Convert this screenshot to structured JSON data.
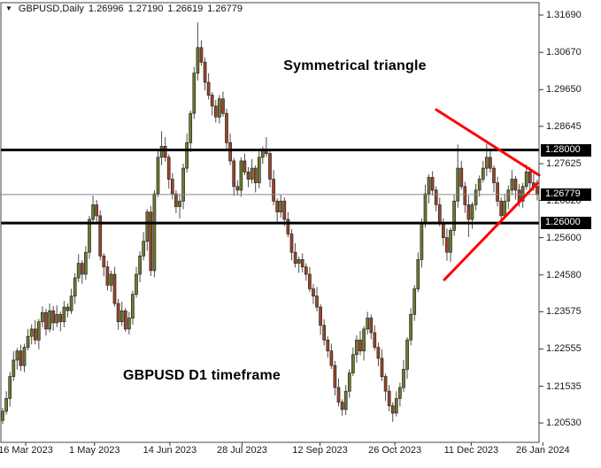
{
  "info_bar": {
    "dropdown_icon": "▼",
    "symbol_label": "GBPUSD,Daily",
    "open": "1.26996",
    "high": "1.27190",
    "low": "1.26619",
    "close": "1.26779"
  },
  "annotations": {
    "pattern_label": "Symmetrical triangle",
    "timeframe_label": "GBPUSD D1 timeframe"
  },
  "chart_data": {
    "type": "candlestick",
    "symbol": "GBPUSD",
    "timeframe": "D1",
    "current_bar": {
      "open": 1.26996,
      "high": 1.2719,
      "low": 1.26619,
      "close": 1.26779
    },
    "price_axis": {
      "top": 1.3203,
      "bottom": 1.2,
      "ticks": [
        1.3169,
        1.3067,
        1.2965,
        1.28645,
        1.27625,
        1.2662,
        1.256,
        1.2458,
        1.23575,
        1.22555,
        1.21535,
        1.2053
      ],
      "badges": [
        {
          "label": "1.28000",
          "price": 1.28
        },
        {
          "label": "1.26779",
          "price": 1.26779
        },
        {
          "label": "1.26000",
          "price": 1.26
        }
      ]
    },
    "date_axis": {
      "ticks": [
        {
          "label": "16 Mar 2023",
          "pos": 0.046
        },
        {
          "label": "1 May 2023",
          "pos": 0.174
        },
        {
          "label": "14 Jun 2023",
          "pos": 0.314
        },
        {
          "label": "28 Jul 2023",
          "pos": 0.448
        },
        {
          "label": "12 Sep 2023",
          "pos": 0.593
        },
        {
          "label": "26 Oct 2023",
          "pos": 0.732
        },
        {
          "label": "11 Dec 2023",
          "pos": 0.874
        },
        {
          "label": "26 Jan 2024",
          "pos": 1.007
        }
      ]
    },
    "levels": [
      {
        "price": 1.28,
        "color": "#000000",
        "width": 3
      },
      {
        "price": 1.26,
        "color": "#000000",
        "width": 3
      },
      {
        "price": 1.26779,
        "color": "#888888",
        "width": 1
      }
    ],
    "trendlines": [
      {
        "x1": 0.809,
        "p1": 1.291,
        "x2": 1.0,
        "p2": 1.2731,
        "color": "#ff0000",
        "width": 3
      },
      {
        "x1": 0.824,
        "p1": 1.2445,
        "x2": 0.997,
        "p2": 1.2709,
        "color": "#ff0000",
        "width": 3
      }
    ],
    "colors": {
      "bull": "#6e7b2b",
      "bear": "#9e4527",
      "wick": "#4d4d4d",
      "outline": "#262626",
      "border": "#444444"
    },
    "candles": [
      [
        1.206,
        1.2095,
        1.205,
        1.2085
      ],
      [
        1.2085,
        1.214,
        1.2076,
        1.212
      ],
      [
        1.212,
        1.2193,
        1.2098,
        1.218
      ],
      [
        1.218,
        1.225,
        1.2168,
        1.2225
      ],
      [
        1.2225,
        1.2258,
        1.2199,
        1.225
      ],
      [
        1.225,
        1.2267,
        1.2195,
        1.221
      ],
      [
        1.221,
        1.227,
        1.2192,
        1.226
      ],
      [
        1.226,
        1.231,
        1.2251,
        1.229
      ],
      [
        1.229,
        1.2323,
        1.2268,
        1.231
      ],
      [
        1.231,
        1.2335,
        1.2268,
        1.228
      ],
      [
        1.228,
        1.2338,
        1.2254,
        1.233
      ],
      [
        1.233,
        1.2372,
        1.2315,
        1.2355
      ],
      [
        1.2355,
        1.2365,
        1.2292,
        1.231
      ],
      [
        1.231,
        1.238,
        1.2301,
        1.236
      ],
      [
        1.236,
        1.2373,
        1.2305,
        1.2327
      ],
      [
        1.2327,
        1.2375,
        1.2315,
        1.235
      ],
      [
        1.235,
        1.2358,
        1.2304,
        1.233
      ],
      [
        1.233,
        1.2387,
        1.2315,
        1.237
      ],
      [
        1.237,
        1.238,
        1.2342,
        1.236
      ],
      [
        1.236,
        1.242,
        1.2351,
        1.24
      ],
      [
        1.24,
        1.2463,
        1.2378,
        1.245
      ],
      [
        1.245,
        1.2515,
        1.2438,
        1.249
      ],
      [
        1.249,
        1.2498,
        1.2434,
        1.246
      ],
      [
        1.246,
        1.2537,
        1.2445,
        1.252
      ],
      [
        1.252,
        1.262,
        1.2502,
        1.261
      ],
      [
        1.261,
        1.2675,
        1.2601,
        1.265
      ],
      [
        1.265,
        1.2663,
        1.2598,
        1.262
      ],
      [
        1.262,
        1.2635,
        1.2498,
        1.251
      ],
      [
        1.251,
        1.2518,
        1.2454,
        1.248
      ],
      [
        1.248,
        1.2497,
        1.2415,
        1.243
      ],
      [
        1.243,
        1.247,
        1.2412,
        1.246
      ],
      [
        1.246,
        1.248,
        1.2371,
        1.238
      ],
      [
        1.238,
        1.2393,
        1.2308,
        1.233
      ],
      [
        1.233,
        1.2385,
        1.2318,
        1.236
      ],
      [
        1.236,
        1.2368,
        1.2303,
        1.231
      ],
      [
        1.231,
        1.2357,
        1.2295,
        1.234
      ],
      [
        1.234,
        1.2415,
        1.2322,
        1.2405
      ],
      [
        1.2405,
        1.248,
        1.2396,
        1.246
      ],
      [
        1.246,
        1.2523,
        1.2438,
        1.251
      ],
      [
        1.251,
        1.2575,
        1.2498,
        1.255
      ],
      [
        1.255,
        1.2638,
        1.2524,
        1.263
      ],
      [
        1.263,
        1.2647,
        1.2455,
        1.247
      ],
      [
        1.247,
        1.269,
        1.2452,
        1.268
      ],
      [
        1.268,
        1.28,
        1.2671,
        1.278
      ],
      [
        1.278,
        1.2851,
        1.2758,
        1.281
      ],
      [
        1.281,
        1.2835,
        1.2768,
        1.278
      ],
      [
        1.278,
        1.2788,
        1.2694,
        1.272
      ],
      [
        1.272,
        1.2737,
        1.2665,
        1.268
      ],
      [
        1.268,
        1.269,
        1.2627,
        1.2645
      ],
      [
        1.2645,
        1.268,
        1.2612,
        1.266
      ],
      [
        1.266,
        1.2763,
        1.2638,
        1.275
      ],
      [
        1.275,
        1.2845,
        1.2738,
        1.282
      ],
      [
        1.282,
        1.2908,
        1.2794,
        1.29
      ],
      [
        1.29,
        1.3027,
        1.2885,
        1.301
      ],
      [
        1.301,
        1.3149,
        1.299,
        1.308
      ],
      [
        1.308,
        1.31,
        1.3031,
        1.304
      ],
      [
        1.304,
        1.3053,
        1.2963,
        1.2985
      ],
      [
        1.2985,
        1.301,
        1.2938,
        1.295
      ],
      [
        1.295,
        1.2958,
        1.2894,
        1.292
      ],
      [
        1.292,
        1.2937,
        1.2875,
        1.289
      ],
      [
        1.289,
        1.295,
        1.2872,
        1.294
      ],
      [
        1.294,
        1.296,
        1.2891,
        1.29
      ],
      [
        1.29,
        1.2913,
        1.2798,
        1.282
      ],
      [
        1.282,
        1.2845,
        1.2758,
        1.277
      ],
      [
        1.277,
        1.2778,
        1.2674,
        1.27
      ],
      [
        1.27,
        1.2717,
        1.2675,
        1.269
      ],
      [
        1.269,
        1.278,
        1.2672,
        1.277
      ],
      [
        1.277,
        1.279,
        1.2731,
        1.274
      ],
      [
        1.274,
        1.2753,
        1.2698,
        1.272
      ],
      [
        1.272,
        1.2775,
        1.2708,
        1.275
      ],
      [
        1.275,
        1.2758,
        1.2684,
        1.271
      ],
      [
        1.271,
        1.2797,
        1.2695,
        1.278
      ],
      [
        1.278,
        1.281,
        1.2762,
        1.28
      ],
      [
        1.28,
        1.2835,
        1.2781,
        1.279
      ],
      [
        1.279,
        1.2803,
        1.2698,
        1.272
      ],
      [
        1.272,
        1.2745,
        1.2648,
        1.266
      ],
      [
        1.266,
        1.2668,
        1.2604,
        1.263
      ],
      [
        1.263,
        1.2677,
        1.2615,
        1.266
      ],
      [
        1.266,
        1.267,
        1.2592,
        1.261
      ],
      [
        1.261,
        1.263,
        1.2561,
        1.257
      ],
      [
        1.257,
        1.2583,
        1.2498,
        1.252
      ],
      [
        1.252,
        1.2545,
        1.2478,
        1.249
      ],
      [
        1.249,
        1.2508,
        1.2464,
        1.25
      ],
      [
        1.25,
        1.2517,
        1.2465,
        1.248
      ],
      [
        1.248,
        1.249,
        1.2442,
        1.246
      ],
      [
        1.246,
        1.248,
        1.2411,
        1.242
      ],
      [
        1.242,
        1.2433,
        1.2378,
        1.24
      ],
      [
        1.24,
        1.2425,
        1.2358,
        1.237
      ],
      [
        1.237,
        1.2378,
        1.2294,
        1.232
      ],
      [
        1.232,
        1.2337,
        1.2265,
        1.228
      ],
      [
        1.228,
        1.229,
        1.2232,
        1.225
      ],
      [
        1.225,
        1.227,
        1.2201,
        1.221
      ],
      [
        1.221,
        1.2223,
        1.2128,
        1.215
      ],
      [
        1.215,
        1.2175,
        1.2098,
        1.211
      ],
      [
        1.211,
        1.2118,
        1.2073,
        1.209
      ],
      [
        1.209,
        1.2157,
        1.2075,
        1.214
      ],
      [
        1.214,
        1.22,
        1.2122,
        1.219
      ],
      [
        1.219,
        1.226,
        1.2181,
        1.224
      ],
      [
        1.224,
        1.2293,
        1.2218,
        1.228
      ],
      [
        1.228,
        1.2305,
        1.2238,
        1.225
      ],
      [
        1.225,
        1.2318,
        1.2224,
        1.231
      ],
      [
        1.231,
        1.2357,
        1.2295,
        1.234
      ],
      [
        1.234,
        1.235,
        1.2282,
        1.23
      ],
      [
        1.23,
        1.232,
        1.2251,
        1.226
      ],
      [
        1.226,
        1.2273,
        1.2208,
        1.223
      ],
      [
        1.223,
        1.2255,
        1.2168,
        1.218
      ],
      [
        1.218,
        1.2188,
        1.2114,
        1.214
      ],
      [
        1.214,
        1.2157,
        1.2085,
        1.21
      ],
      [
        1.21,
        1.211,
        1.2056,
        1.208
      ],
      [
        1.208,
        1.214,
        1.2071,
        1.212
      ],
      [
        1.212,
        1.2163,
        1.2098,
        1.215
      ],
      [
        1.215,
        1.2225,
        1.2138,
        1.22
      ],
      [
        1.22,
        1.2288,
        1.2174,
        1.228
      ],
      [
        1.228,
        1.2367,
        1.2265,
        1.235
      ],
      [
        1.235,
        1.243,
        1.2332,
        1.242
      ],
      [
        1.242,
        1.252,
        1.2411,
        1.25
      ],
      [
        1.25,
        1.2613,
        1.2478,
        1.26
      ],
      [
        1.26,
        1.2705,
        1.2588,
        1.268
      ],
      [
        1.268,
        1.2733,
        1.2654,
        1.2725
      ],
      [
        1.2725,
        1.2742,
        1.2675,
        1.269
      ],
      [
        1.269,
        1.27,
        1.2632,
        1.265
      ],
      [
        1.265,
        1.267,
        1.2591,
        1.26
      ],
      [
        1.26,
        1.2613,
        1.2538,
        1.256
      ],
      [
        1.256,
        1.2585,
        1.2497,
        1.252
      ],
      [
        1.252,
        1.2588,
        1.2494,
        1.258
      ],
      [
        1.258,
        1.2677,
        1.2565,
        1.266
      ],
      [
        1.266,
        1.2815,
        1.2642,
        1.275
      ],
      [
        1.275,
        1.277,
        1.2691,
        1.27
      ],
      [
        1.27,
        1.2713,
        1.2628,
        1.265
      ],
      [
        1.265,
        1.2675,
        1.2562,
        1.261
      ],
      [
        1.261,
        1.2658,
        1.2584,
        1.265
      ],
      [
        1.265,
        1.2707,
        1.2635,
        1.269
      ],
      [
        1.269,
        1.273,
        1.2672,
        1.272
      ],
      [
        1.272,
        1.277,
        1.2711,
        1.275
      ],
      [
        1.275,
        1.2817,
        1.2728,
        1.278
      ],
      [
        1.278,
        1.2805,
        1.2738,
        1.275
      ],
      [
        1.275,
        1.2758,
        1.2684,
        1.271
      ],
      [
        1.271,
        1.2727,
        1.2645,
        1.266
      ],
      [
        1.266,
        1.267,
        1.2606,
        1.262
      ],
      [
        1.262,
        1.268,
        1.2611,
        1.266
      ],
      [
        1.266,
        1.2703,
        1.2638,
        1.269
      ],
      [
        1.269,
        1.2745,
        1.2678,
        1.272
      ],
      [
        1.272,
        1.2728,
        1.2664,
        1.269
      ],
      [
        1.269,
        1.2707,
        1.2645,
        1.266
      ],
      [
        1.266,
        1.271,
        1.2642,
        1.27
      ],
      [
        1.27,
        1.276,
        1.2691,
        1.274
      ],
      [
        1.274,
        1.2753,
        1.2688,
        1.271
      ],
      [
        1.271,
        1.2735,
        1.2688,
        1.27
      ],
      [
        1.26996,
        1.2719,
        1.26619,
        1.26779
      ]
    ]
  }
}
